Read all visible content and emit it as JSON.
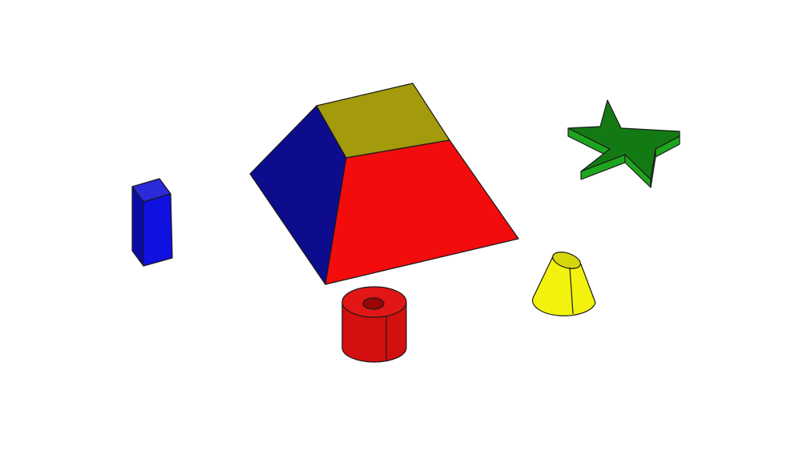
{
  "scene": {
    "background": "#ffffff",
    "objects": [
      {
        "name": "blue-box",
        "kind": "rectangular-prism",
        "colors": {
          "front": "#1010e0",
          "side": "#0a0aa8",
          "top": "#2a2ad8"
        }
      },
      {
        "name": "frustum-pyramid",
        "kind": "truncated-pyramid",
        "colors": {
          "top": "#a39a0c",
          "left": "#0c0c8c",
          "front": "#f20c0c"
        }
      },
      {
        "name": "green-star",
        "kind": "extruded-star",
        "colors": {
          "top": "#137a13",
          "side": "#1ea51e"
        }
      },
      {
        "name": "red-tube",
        "kind": "hollow-cylinder",
        "colors": {
          "body": "#d40f0f",
          "top": "#e21616",
          "hole": "#9a0606"
        }
      },
      {
        "name": "yellow-cone",
        "kind": "truncated-cone",
        "colors": {
          "body": "#f2f20e",
          "top": "#d6d60c",
          "shade": "#c9c90a"
        }
      }
    ]
  }
}
